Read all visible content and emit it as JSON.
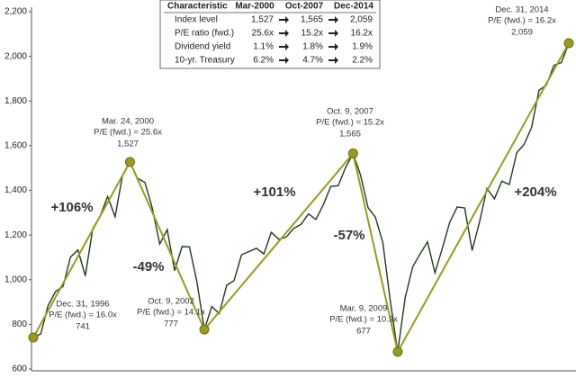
{
  "chart_data": {
    "type": "line",
    "values": [
      741,
      757,
      885,
      947,
      970,
      1101,
      1133,
      1017,
      1229,
      1286,
      1372,
      1282,
      1469,
      1527,
      1454,
      1436,
      1320,
      1160,
      1224,
      1040,
      1148,
      1147,
      990,
      777,
      880,
      848,
      975,
      996,
      1112,
      1126,
      1141,
      1115,
      1212,
      1181,
      1191,
      1229,
      1248,
      1295,
      1270,
      1336,
      1418,
      1421,
      1503,
      1565,
      1468,
      1323,
      1280,
      1166,
      903,
      677,
      919,
      1057,
      1115,
      1169,
      1031,
      1141,
      1258,
      1326,
      1321,
      1131,
      1258,
      1408,
      1362,
      1441,
      1426,
      1569,
      1606,
      1682,
      1848,
      1872,
      1960,
      1972,
      2059
    ],
    "color": "#1f3a1f",
    "ylim": [
      600,
      2200
    ],
    "yticks": [
      600,
      800,
      {
        "value": 1000,
        "label": "1,000"
      },
      {
        "value": 1200,
        "label": "1,200"
      },
      {
        "value": 1400,
        "label": "1,400"
      },
      {
        "value": 1600,
        "label": "1,600"
      },
      {
        "value": 1800,
        "label": "1,800"
      },
      {
        "value": 2000,
        "label": "2,000"
      },
      {
        "value": 2200,
        "label": "2,200"
      }
    ],
    "markers": {
      "color": "#9a9a22",
      "values": [
        741,
        1527,
        777,
        1565,
        677,
        2059
      ],
      "value_labels": [
        "741",
        "1,527",
        "777",
        "1,565",
        "677",
        "2,059"
      ],
      "dates": [
        "Dec. 31, 1996",
        "Mar. 24, 2000",
        "Oct. 9, 2002",
        "Oct. 9, 2007",
        "Mar. 9, 2009",
        "Dec. 31, 2014"
      ],
      "pe": [
        "P/E (fwd.) = 16.0x",
        "P/E (fwd.) = 25.6x",
        "P/E (fwd.) = 14.1x",
        "P/E (fwd.) = 15.2x",
        "P/E (fwd.) = 10.3x",
        "P/E (fwd.) = 16.2x"
      ]
    },
    "changes": [
      "+106%",
      "-49%",
      "+101%",
      "-57%",
      "+204%"
    ]
  },
  "table": {
    "header": [
      "Characteristic",
      "Mar-2000",
      "Oct-2007",
      "Dec-2014"
    ],
    "rows": [
      [
        "Index level",
        "1,527",
        "1,565",
        "2,059"
      ],
      [
        "P/E ratio (fwd.)",
        "25.6x",
        "15.2x",
        "16.2x"
      ],
      [
        "Dividend yield",
        "1.1%",
        "1.8%",
        "1.9%"
      ],
      [
        "10-yr. Treasury",
        "6.2%",
        "4.7%",
        "2.2%"
      ]
    ]
  }
}
